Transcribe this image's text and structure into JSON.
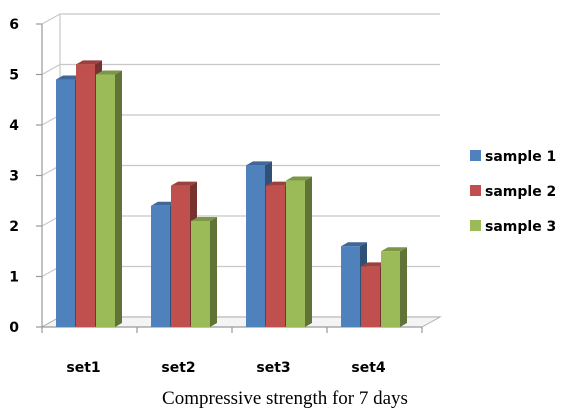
{
  "chart_data": {
    "type": "bar",
    "categories": [
      "set1",
      "set2",
      "set3",
      "set4"
    ],
    "series": [
      {
        "name": "sample 1",
        "values": [
          4.9,
          2.4,
          3.2,
          1.6
        ],
        "color": "#4f81bd"
      },
      {
        "name": "sample 2",
        "values": [
          5.2,
          2.8,
          2.8,
          1.2
        ],
        "color": "#c0504d"
      },
      {
        "name": "sample 3",
        "values": [
          5.0,
          2.1,
          2.9,
          1.5
        ],
        "color": "#9bbb59"
      }
    ],
    "title": "",
    "xlabel": "",
    "ylabel": "",
    "ylim": [
      0,
      6
    ],
    "yticks": [
      "0",
      "1",
      "2",
      "3",
      "4",
      "5",
      "6"
    ],
    "grid": true,
    "legend_position": "right"
  },
  "caption": "Compressive strength for 7 days"
}
